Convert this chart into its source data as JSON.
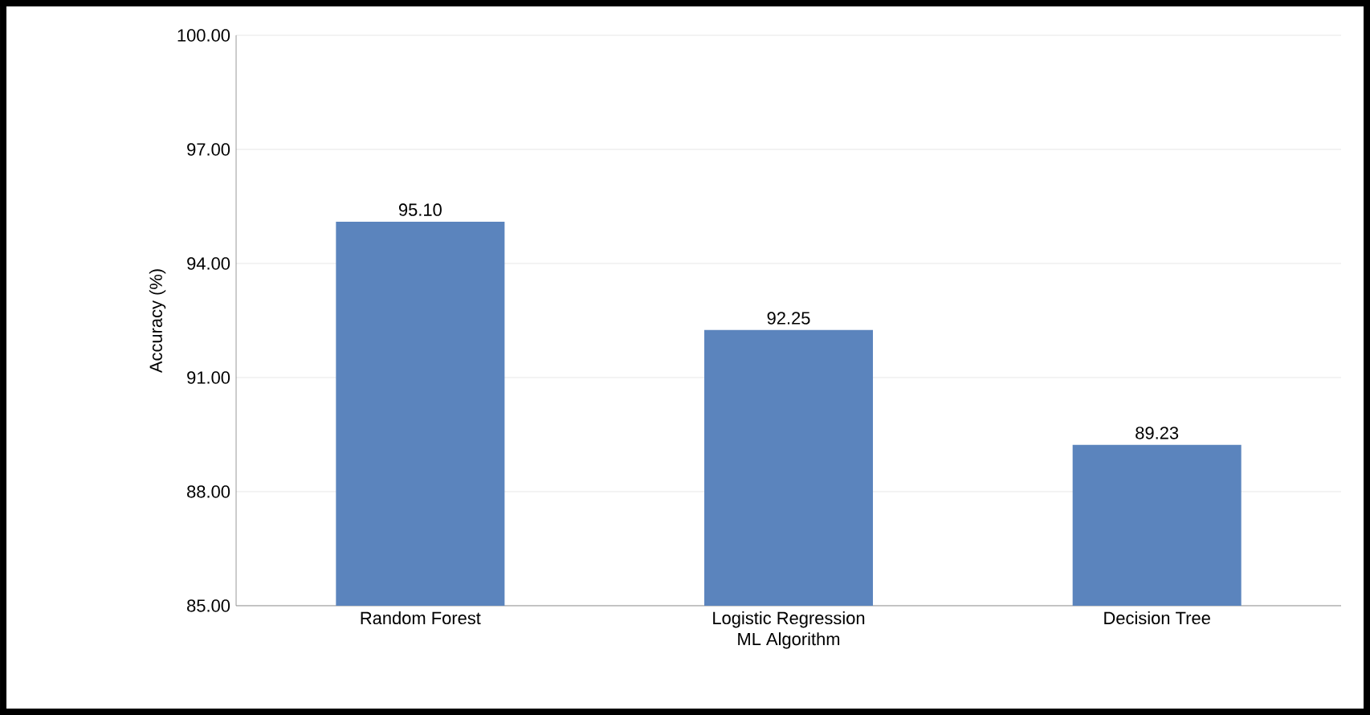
{
  "chart_data": {
    "type": "bar",
    "xlabel": "ML Algorithm",
    "ylabel": "Accuracy (%)",
    "categories": [
      "Random Forest",
      "Logistic Regression",
      "Decision Tree"
    ],
    "values": [
      95.1,
      92.25,
      89.23
    ],
    "color": "#5b84bd",
    "value_labels": [
      "95.10",
      "92.25",
      "89.23"
    ],
    "ylim": [
      85,
      100
    ],
    "yticks": [
      {
        "value": 85,
        "label": "85.00"
      },
      {
        "value": 88,
        "label": "88.00"
      },
      {
        "value": 91,
        "label": "91.00"
      },
      {
        "value": 94,
        "label": "94.00"
      },
      {
        "value": 97,
        "label": "97.00"
      },
      {
        "value": 100,
        "label": "100.00"
      }
    ],
    "grid": "y"
  }
}
